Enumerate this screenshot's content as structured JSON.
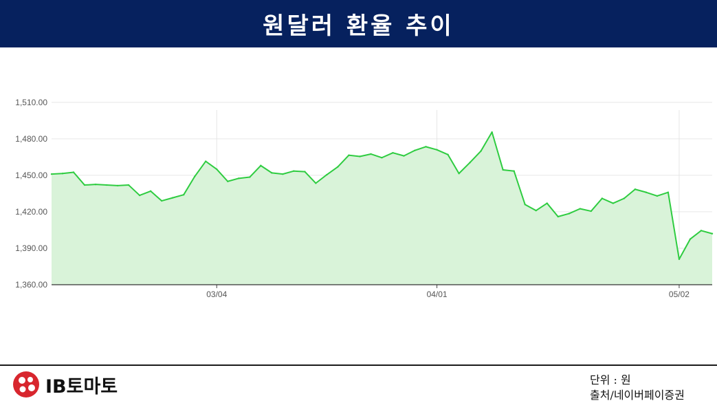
{
  "header": {
    "title": "원달러 환율 추이"
  },
  "footer": {
    "logo_text": "IB토마토",
    "unit": "단위 : 원",
    "source": "출처/네이버페이증권"
  },
  "colors": {
    "header_bg": "#06215e",
    "line": "#2ecc40",
    "fill": "#d9f3d9",
    "grid": "#e6e6e6"
  },
  "chart_data": {
    "type": "area",
    "title": "원달러 환율 추이",
    "xlabel": "",
    "ylabel": "",
    "ylim": [
      1360,
      1515
    ],
    "y_ticks": [
      "1,360.00",
      "1,390.00",
      "1,420.00",
      "1,450.00",
      "1,480.00",
      "1,510.00"
    ],
    "x_ticks": [
      {
        "label": "03/04",
        "index": 15
      },
      {
        "label": "04/01",
        "index": 35
      },
      {
        "label": "05/02",
        "index": 57
      }
    ],
    "grid": true,
    "series": [
      {
        "values": [
          1451,
          1451.5,
          1452.5,
          1442,
          1442.5,
          1442,
          1441.5,
          1442,
          1433.5,
          1437,
          1429,
          1431.5,
          1434,
          1449,
          1461.5,
          1455,
          1445,
          1447.5,
          1448.5,
          1458,
          1452,
          1451,
          1453.5,
          1453,
          1443.5,
          1450.5,
          1457,
          1466.5,
          1465.5,
          1467.5,
          1464.5,
          1468.5,
          1466,
          1470.5,
          1473.5,
          1471,
          1467,
          1451.5,
          1460.5,
          1470,
          1485.5,
          1454.5,
          1453.5,
          1426,
          1421,
          1427,
          1416,
          1418.5,
          1422.5,
          1420.5,
          1431,
          1427,
          1431,
          1438.5,
          1436,
          1433,
          1436,
          1381,
          1397.5,
          1404.5,
          1402
        ]
      }
    ]
  }
}
